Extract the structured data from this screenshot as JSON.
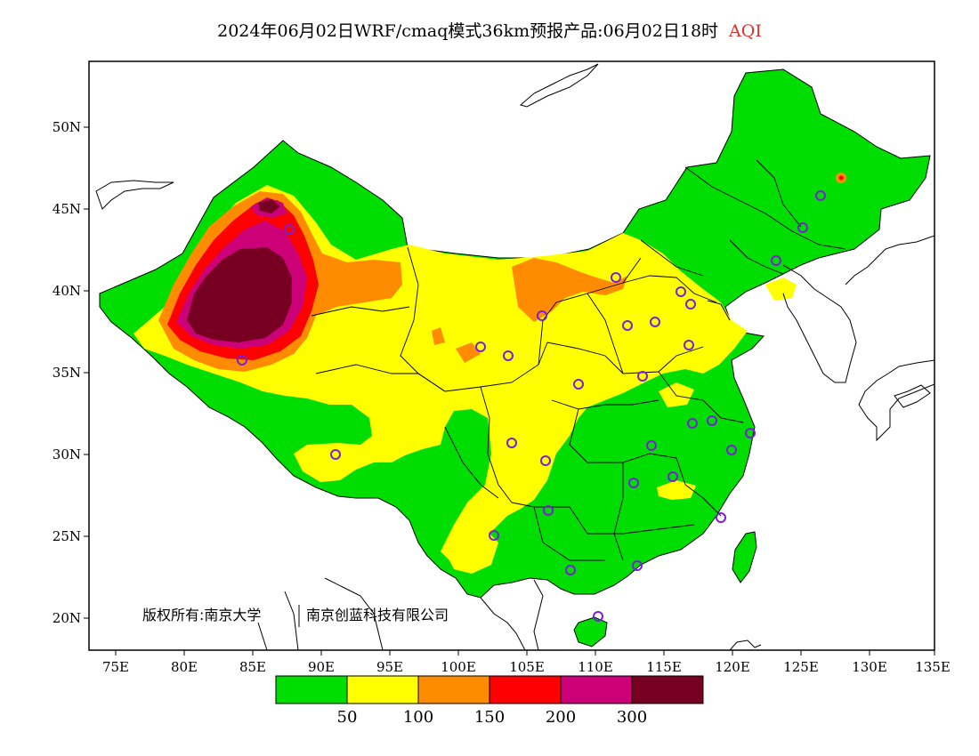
{
  "title": {
    "main": "2024年06月02日WRF/cmaq模式36km预报产品:06月02日18时",
    "variable": "AQI"
  },
  "colors": {
    "good": "#00dd00",
    "moderate": "#ffff00",
    "sensitive": "#ff8c00",
    "unhealthy": "#ff0000",
    "very_unhealthy": "#cc0077",
    "hazardous": "#770022",
    "city_marker": "#7b1fd9"
  },
  "axes": {
    "x_ticks": [
      "75E",
      "80E",
      "85E",
      "90E",
      "95E",
      "100E",
      "105E",
      "110E",
      "115E",
      "120E",
      "125E",
      "130E",
      "135E"
    ],
    "y_ticks": [
      "50N",
      "45N",
      "40N",
      "35N",
      "30N",
      "25N",
      "20N"
    ]
  },
  "legend": {
    "colors": [
      "#00dd00",
      "#ffff00",
      "#ff8c00",
      "#ff0000",
      "#cc0077",
      "#770022"
    ],
    "labels": [
      "50",
      "100",
      "150",
      "200",
      "300"
    ]
  },
  "copyright": {
    "owner": "版权所有:南京大学",
    "partner": "南京创蓝科技有限公司"
  }
}
